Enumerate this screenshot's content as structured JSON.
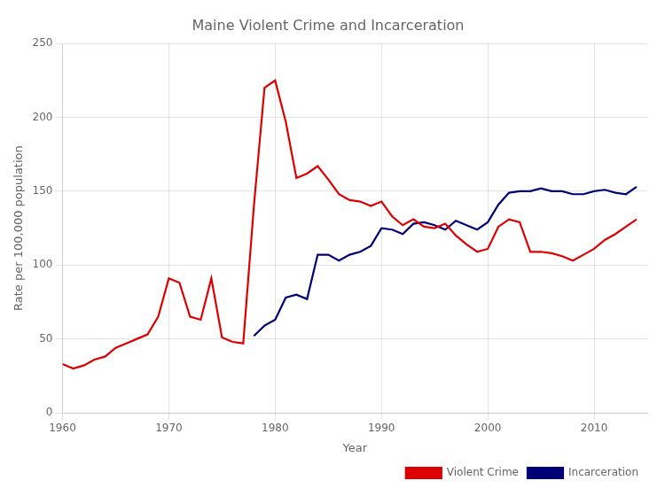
{
  "chart_data": {
    "type": "line",
    "title": "Maine Violent Crime and Incarceration",
    "xlabel": "Year",
    "ylabel": "Rate per 100,000 population",
    "x": [
      1960,
      1961,
      1962,
      1963,
      1964,
      1965,
      1966,
      1967,
      1968,
      1969,
      1970,
      1971,
      1972,
      1973,
      1974,
      1975,
      1976,
      1977,
      1978,
      1979,
      1980,
      1981,
      1982,
      1983,
      1984,
      1985,
      1986,
      1987,
      1988,
      1989,
      1990,
      1991,
      1992,
      1993,
      1994,
      1995,
      1996,
      1997,
      1998,
      1999,
      2000,
      2001,
      2002,
      2003,
      2004,
      2005,
      2006,
      2007,
      2008,
      2009,
      2010,
      2011,
      2012,
      2013,
      2014
    ],
    "series": [
      {
        "name": "Violent Crime",
        "color": "#dd0000",
        "values": [
          33,
          30,
          32,
          36,
          38,
          44,
          47,
          50,
          53,
          65,
          91,
          88,
          65,
          63,
          91,
          51,
          48,
          47,
          140,
          220,
          225,
          197,
          159,
          162,
          167,
          158,
          148,
          144,
          143,
          140,
          143,
          133,
          127,
          131,
          126,
          125,
          128,
          120,
          114,
          109,
          111,
          126,
          131,
          129,
          109,
          109,
          108,
          106,
          103,
          107,
          111,
          117,
          121,
          126,
          131
        ]
      },
      {
        "name": "Incarceration",
        "color": "#000077",
        "values": [
          null,
          null,
          null,
          null,
          null,
          null,
          null,
          null,
          null,
          null,
          null,
          null,
          null,
          null,
          null,
          null,
          null,
          null,
          52,
          59,
          63,
          78,
          80,
          77,
          107,
          107,
          103,
          107,
          109,
          113,
          125,
          124,
          121,
          128,
          129,
          127,
          124,
          130,
          127,
          124,
          129,
          141,
          149,
          150,
          150,
          152,
          150,
          150,
          148,
          148,
          150,
          151,
          149,
          148,
          153
        ]
      }
    ],
    "xlim": [
      1960,
      2015
    ],
    "xticks": [
      1960,
      1970,
      1980,
      1990,
      2000,
      2010
    ],
    "ylim": [
      0,
      250
    ],
    "yticks": [
      0,
      50,
      100,
      150,
      200,
      250
    ],
    "grid": true,
    "legend": "lower right"
  }
}
